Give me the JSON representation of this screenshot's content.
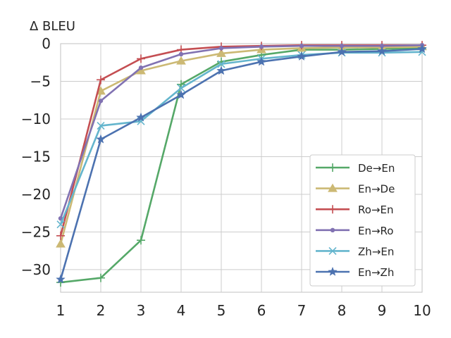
{
  "chart_data": {
    "type": "line",
    "title": "",
    "xlabel": "",
    "ylabel": "Δ BLEU",
    "x": [
      1,
      2,
      3,
      4,
      5,
      6,
      7,
      8,
      9,
      10
    ],
    "xlim": [
      1,
      10
    ],
    "ylim": [
      -33,
      0
    ],
    "xticks": [
      "1",
      "2",
      "3",
      "4",
      "5",
      "6",
      "7",
      "8",
      "9",
      "10"
    ],
    "yticks": [
      "0",
      "−5",
      "−10",
      "−15",
      "−20",
      "−25",
      "−30"
    ],
    "ytick_values": [
      0,
      -5,
      -10,
      -15,
      -20,
      -25,
      -30
    ],
    "grid": true,
    "legend_position": "lower-right",
    "series": [
      {
        "name": "De→En",
        "color": "#55a868",
        "marker": "plus",
        "values": [
          -31.7,
          -31.1,
          -26.1,
          -5.4,
          -2.4,
          -1.5,
          -0.8,
          -0.8,
          -0.7,
          -0.6
        ]
      },
      {
        "name": "En→De",
        "color": "#ccb974",
        "marker": "triangle",
        "values": [
          -26.6,
          -6.3,
          -3.6,
          -2.3,
          -1.3,
          -0.8,
          -0.6,
          -0.5,
          -0.5,
          -0.4
        ]
      },
      {
        "name": "Ro→En",
        "color": "#c44e52",
        "marker": "plus",
        "values": [
          -25.5,
          -4.8,
          -2.0,
          -0.8,
          -0.4,
          -0.3,
          -0.2,
          -0.2,
          -0.2,
          -0.2
        ]
      },
      {
        "name": "En→Ro",
        "color": "#8172b2",
        "marker": "dot",
        "values": [
          -23.2,
          -7.6,
          -3.2,
          -1.4,
          -0.6,
          -0.4,
          -0.3,
          -0.3,
          -0.3,
          -0.2
        ]
      },
      {
        "name": "Zh→En",
        "color": "#64b5cd",
        "marker": "x",
        "values": [
          -24.0,
          -10.9,
          -10.3,
          -5.9,
          -2.7,
          -2.0,
          -1.5,
          -1.2,
          -1.2,
          -1.1
        ]
      },
      {
        "name": "En→Zh",
        "color": "#4c72b0",
        "marker": "star",
        "values": [
          -31.3,
          -12.7,
          -9.8,
          -6.8,
          -3.6,
          -2.4,
          -1.7,
          -1.1,
          -1.0,
          -0.7
        ]
      }
    ]
  }
}
